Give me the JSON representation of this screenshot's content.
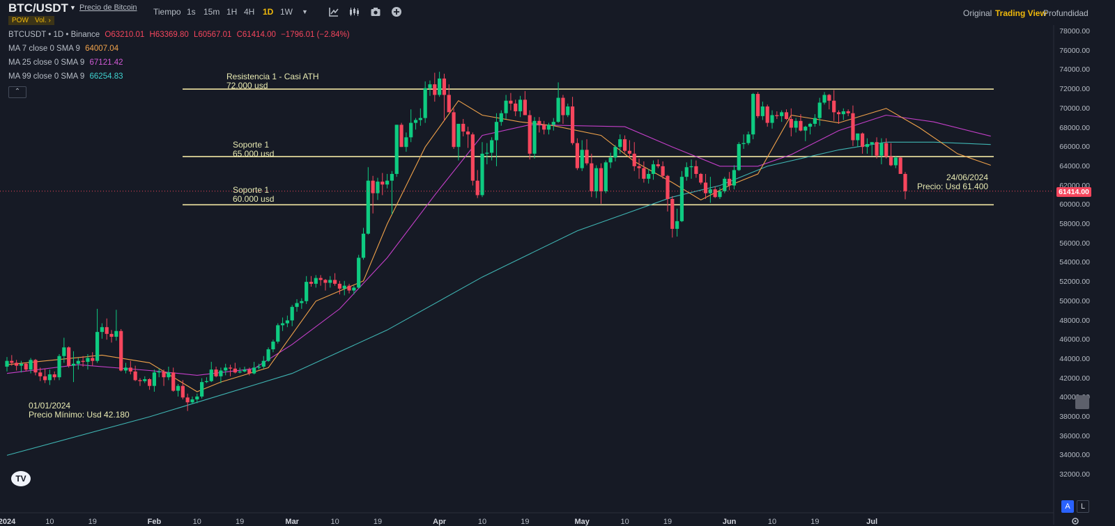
{
  "header": {
    "symbol": "BTC/USDT",
    "price_link": "Precio de Bitcoin",
    "badge_pow": "POW",
    "badge_vol": "Vol. ›",
    "timeframe_label": "Tiempo",
    "timeframes": [
      "1s",
      "15m",
      "1H",
      "4H",
      "1D",
      "1W"
    ],
    "active_timeframe": "1D",
    "views": [
      "Original",
      "Trading View",
      "Profundidad"
    ],
    "active_view": "Trading View"
  },
  "legend": {
    "line1_name": "BTCUSDT • 1D • Binance",
    "open": "O63210.01",
    "high": "H63369.80",
    "low": "L60567.01",
    "close": "C61414.00",
    "change": "−1796.01 (−2.84%)",
    "ma7_label": "MA 7 close 0 SMA 9",
    "ma7_value": "64007.04",
    "ma25_label": "MA 25 close 0 SMA 9",
    "ma25_value": "67121.42",
    "ma99_label": "MA 99 close 0 SMA 9",
    "ma99_value": "66254.83",
    "collapse": "⌃"
  },
  "annotations": {
    "resistance": [
      "Resistencia 1 - Casi ATH",
      "72.000 usd"
    ],
    "support1": [
      "Soporte 1",
      "65.000 usd"
    ],
    "support2": [
      "Soporte 1",
      "60.000 usd"
    ],
    "end_note": [
      "24/06/2024",
      "Precio: Usd 61.400"
    ],
    "start_note": [
      "01/01/2024",
      "Precio Mínimo: Usd 42.180"
    ]
  },
  "price_scale": {
    "labels": [
      "78000.00",
      "76000.00",
      "74000.00",
      "72000.00",
      "70000.00",
      "68000.00",
      "66000.00",
      "64000.00",
      "62000.00",
      "60000.00",
      "58000.00",
      "56000.00",
      "54000.00",
      "52000.00",
      "50000.00",
      "48000.00",
      "46000.00",
      "44000.00",
      "42000.00",
      "40000.00",
      "38000.00",
      "36000.00",
      "34000.00",
      "32000.00"
    ],
    "current_price": "61414.00",
    "auto_btn": "A",
    "log_btn": "L"
  },
  "time_scale": {
    "labels": [
      "2024",
      "10",
      "19",
      "Feb",
      "10",
      "19",
      "Mar",
      "10",
      "19",
      "Apr",
      "10",
      "19",
      "May",
      "10",
      "19",
      "Jun",
      "10",
      "19",
      "Jul"
    ]
  },
  "chart_data": {
    "type": "candlestick",
    "title": "",
    "x_start": "2024-01-01",
    "ylim": [
      31000,
      79000
    ],
    "levels": [
      72000,
      65000,
      60000
    ],
    "colors": {
      "up": "#0ecb81",
      "down": "#f6465d",
      "ma7": "#f0a24a",
      "ma25": "#c43fc9",
      "ma99": "#3fb5b3",
      "level": "#f2e6a3"
    },
    "candles": [
      [
        43200,
        44200,
        42700,
        43800
      ],
      [
        43800,
        44400,
        43300,
        43600
      ],
      [
        43600,
        43900,
        42800,
        43300
      ],
      [
        43300,
        43800,
        42600,
        43500
      ],
      [
        43500,
        43600,
        42700,
        42900
      ],
      [
        42900,
        44100,
        42500,
        43900
      ],
      [
        43900,
        44000,
        42300,
        42600
      ],
      [
        42600,
        43100,
        41700,
        42200
      ],
      [
        42200,
        43000,
        41500,
        41800
      ],
      [
        41800,
        42900,
        41300,
        42400
      ],
      [
        42400,
        42700,
        41800,
        42100
      ],
      [
        42100,
        44500,
        41800,
        44300
      ],
      [
        44300,
        46200,
        43600,
        45200
      ],
      [
        45200,
        45300,
        43100,
        43300
      ],
      [
        43300,
        44800,
        41600,
        43500
      ],
      [
        43500,
        44100,
        42900,
        43800
      ],
      [
        43800,
        44300,
        43200,
        43700
      ],
      [
        43700,
        44500,
        42900,
        44100
      ],
      [
        44100,
        44700,
        43300,
        43800
      ],
      [
        43800,
        49200,
        43600,
        46800
      ],
      [
        46800,
        47700,
        46100,
        47300
      ],
      [
        47300,
        48200,
        46000,
        46600
      ],
      [
        46600,
        47000,
        45700,
        46300
      ],
      [
        46300,
        49100,
        45900,
        46900
      ],
      [
        46900,
        47100,
        42700,
        42800
      ],
      [
        42800,
        43600,
        42500,
        43100
      ],
      [
        43100,
        43800,
        42400,
        42700
      ],
      [
        42700,
        43300,
        41700,
        41800
      ],
      [
        41800,
        42000,
        41200,
        41700
      ],
      [
        41700,
        42200,
        41500,
        41900
      ],
      [
        41900,
        42000,
        40800,
        41200
      ],
      [
        41200,
        42900,
        40600,
        42600
      ],
      [
        42600,
        43000,
        42100,
        42700
      ],
      [
        42700,
        42900,
        41200,
        42100
      ],
      [
        42100,
        43200,
        41800,
        42600
      ],
      [
        42600,
        43100,
        40600,
        40700
      ],
      [
        40700,
        41400,
        40100,
        41200
      ],
      [
        41200,
        41800,
        39800,
        40000
      ],
      [
        40000,
        40400,
        38600,
        39500
      ],
      [
        39500,
        40100,
        39300,
        39800
      ],
      [
        39800,
        40400,
        39400,
        40100
      ],
      [
        40100,
        42000,
        39900,
        41600
      ],
      [
        41600,
        42100,
        41500,
        41700
      ],
      [
        41700,
        43700,
        41600,
        42900
      ],
      [
        42900,
        43200,
        42100,
        42200
      ],
      [
        42200,
        43100,
        41500,
        42800
      ],
      [
        42800,
        43500,
        42300,
        43100
      ],
      [
        43100,
        43400,
        42200,
        43000
      ],
      [
        43000,
        43600,
        42500,
        42600
      ],
      [
        42600,
        43100,
        42500,
        42700
      ],
      [
        42700,
        43200,
        42600,
        42900
      ],
      [
        42900,
        43100,
        42300,
        42500
      ],
      [
        42500,
        43700,
        42400,
        43100
      ],
      [
        43100,
        43500,
        42900,
        43200
      ],
      [
        43200,
        44300,
        43000,
        43800
      ],
      [
        43800,
        45200,
        43700,
        45000
      ],
      [
        45000,
        46000,
        44700,
        45800
      ],
      [
        45800,
        47700,
        45600,
        47500
      ],
      [
        47500,
        48300,
        46900,
        47700
      ],
      [
        47700,
        48500,
        47300,
        48000
      ],
      [
        48000,
        49600,
        47400,
        49400
      ],
      [
        49400,
        50200,
        48900,
        49800
      ],
      [
        49800,
        50300,
        49200,
        50000
      ],
      [
        50000,
        52600,
        49700,
        52000
      ],
      [
        52000,
        52600,
        51500,
        51800
      ],
      [
        51800,
        52700,
        51400,
        52400
      ],
      [
        52400,
        52700,
        51600,
        52200
      ],
      [
        52200,
        52300,
        51100,
        51900
      ],
      [
        51900,
        52600,
        51400,
        52200
      ],
      [
        52200,
        52900,
        51600,
        51800
      ],
      [
        51800,
        52100,
        50700,
        51300
      ],
      [
        51300,
        52100,
        50600,
        51600
      ],
      [
        51600,
        51800,
        50800,
        51100
      ],
      [
        51100,
        51600,
        50700,
        51400
      ],
      [
        51400,
        54800,
        51300,
        54500
      ],
      [
        54500,
        57600,
        54300,
        57000
      ],
      [
        57000,
        63900,
        56900,
        62500
      ],
      [
        62500,
        63000,
        59100,
        61200
      ],
      [
        61200,
        62800,
        60500,
        62400
      ],
      [
        62400,
        63300,
        61000,
        62100
      ],
      [
        62100,
        63200,
        61700,
        62500
      ],
      [
        62500,
        63500,
        59000,
        63200
      ],
      [
        63200,
        68300,
        62900,
        68300
      ],
      [
        68300,
        68500,
        66000,
        66000
      ],
      [
        66000,
        67500,
        65500,
        67000
      ],
      [
        67000,
        69900,
        66500,
        68500
      ],
      [
        68500,
        69000,
        67800,
        68800
      ],
      [
        68800,
        70000,
        68200,
        69000
      ],
      [
        69000,
        72800,
        68500,
        72100
      ],
      [
        72100,
        72900,
        71300,
        72500
      ],
      [
        72500,
        73700,
        70700,
        71400
      ],
      [
        71400,
        73800,
        71200,
        73100
      ],
      [
        73100,
        73600,
        68700,
        71400
      ],
      [
        71400,
        72500,
        70000,
        69600
      ],
      [
        69600,
        70000,
        65800,
        66000
      ],
      [
        66000,
        68400,
        64600,
        68400
      ],
      [
        68400,
        68900,
        67100,
        67600
      ],
      [
        67600,
        68100,
        65900,
        67300
      ],
      [
        67300,
        67500,
        62000,
        62500
      ],
      [
        62500,
        63600,
        60700,
        61000
      ],
      [
        61000,
        66500,
        60800,
        65300
      ],
      [
        65300,
        66400,
        64200,
        65400
      ],
      [
        65400,
        67000,
        64600,
        66700
      ],
      [
        66700,
        69500,
        64000,
        68600
      ],
      [
        68600,
        69800,
        68200,
        69500
      ],
      [
        69500,
        71400,
        68900,
        70800
      ],
      [
        70800,
        71600,
        69800,
        70500
      ],
      [
        70500,
        70900,
        69200,
        69700
      ],
      [
        69700,
        71300,
        69100,
        70900
      ],
      [
        70900,
        71800,
        69600,
        69300
      ],
      [
        69300,
        69800,
        64700,
        65300
      ],
      [
        65300,
        69100,
        64800,
        68700
      ],
      [
        68700,
        69100,
        67500,
        68300
      ],
      [
        68300,
        68700,
        67300,
        67800
      ],
      [
        67800,
        68500,
        67300,
        68300
      ],
      [
        68300,
        69000,
        67700,
        68600
      ],
      [
        68600,
        72700,
        68500,
        71100
      ],
      [
        71100,
        71400,
        68400,
        69300
      ],
      [
        69300,
        70500,
        69100,
        70200
      ],
      [
        70200,
        71200,
        66200,
        66400
      ],
      [
        66400,
        66900,
        63600,
        63800
      ],
      [
        63800,
        66700,
        63500,
        65700
      ],
      [
        65700,
        66800,
        64100,
        64300
      ],
      [
        64300,
        65300,
        60800,
        61400
      ],
      [
        61400,
        64100,
        60700,
        63800
      ],
      [
        63800,
        64300,
        60100,
        61400
      ],
      [
        61400,
        64600,
        61200,
        64400
      ],
      [
        64400,
        65400,
        63800,
        64900
      ],
      [
        64900,
        66200,
        64500,
        66000
      ],
      [
        66000,
        67300,
        65300,
        66800
      ],
      [
        66800,
        67200,
        65400,
        65600
      ],
      [
        65600,
        66700,
        64900,
        65300
      ],
      [
        65300,
        66500,
        63500,
        64000
      ],
      [
        64000,
        64800,
        62700,
        63800
      ],
      [
        63800,
        64500,
        62300,
        62700
      ],
      [
        62700,
        63700,
        62200,
        63200
      ],
      [
        63200,
        64600,
        62600,
        64200
      ],
      [
        64200,
        64700,
        63800,
        64000
      ],
      [
        64000,
        64500,
        62700,
        63000
      ],
      [
        63000,
        63100,
        59300,
        60600
      ],
      [
        60600,
        60900,
        56600,
        57500
      ],
      [
        57500,
        59600,
        56700,
        58300
      ],
      [
        58300,
        63500,
        58200,
        62900
      ],
      [
        62900,
        64400,
        62500,
        63900
      ],
      [
        63900,
        64700,
        62700,
        64000
      ],
      [
        64000,
        64600,
        62800,
        63200
      ],
      [
        63200,
        63300,
        62100,
        62300
      ],
      [
        62300,
        63200,
        60600,
        61200
      ],
      [
        61200,
        62900,
        60200,
        61600
      ],
      [
        61600,
        61900,
        60700,
        60800
      ],
      [
        60800,
        61800,
        60600,
        61400
      ],
      [
        61400,
        62900,
        61200,
        62700
      ],
      [
        62700,
        63400,
        61500,
        62000
      ],
      [
        62000,
        64100,
        61600,
        63600
      ],
      [
        63600,
        66500,
        63500,
        66300
      ],
      [
        66300,
        67300,
        65800,
        66400
      ],
      [
        66400,
        67600,
        66200,
        67300
      ],
      [
        67300,
        71600,
        66800,
        71500
      ],
      [
        71500,
        71700,
        69000,
        69200
      ],
      [
        69200,
        70700,
        68800,
        70200
      ],
      [
        70200,
        70400,
        68100,
        68500
      ],
      [
        68500,
        69800,
        67900,
        69300
      ],
      [
        69300,
        69700,
        68900,
        69200
      ],
      [
        69200,
        69800,
        68600,
        69600
      ],
      [
        69600,
        69900,
        68800,
        68900
      ],
      [
        68900,
        70000,
        67100,
        68000
      ],
      [
        68000,
        69000,
        67500,
        68700
      ],
      [
        68700,
        69400,
        67600,
        67700
      ],
      [
        67700,
        68200,
        66600,
        68100
      ],
      [
        68100,
        68500,
        67300,
        68400
      ],
      [
        68400,
        69400,
        68100,
        69000
      ],
      [
        69000,
        71100,
        68200,
        70600
      ],
      [
        70600,
        71700,
        70400,
        71400
      ],
      [
        71400,
        71500,
        69900,
        70800
      ],
      [
        70800,
        71900,
        68700,
        69600
      ],
      [
        69600,
        69800,
        68400,
        69400
      ],
      [
        69400,
        70000,
        68800,
        69700
      ],
      [
        69700,
        69900,
        69200,
        69500
      ],
      [
        69500,
        70300,
        66100,
        66700
      ],
      [
        66700,
        67200,
        66000,
        67400
      ],
      [
        67400,
        67500,
        65300,
        66000
      ],
      [
        66000,
        66900,
        65300,
        66300
      ],
      [
        66300,
        66400,
        65100,
        66500
      ],
      [
        66500,
        67000,
        64800,
        65100
      ],
      [
        65100,
        66900,
        64200,
        66400
      ],
      [
        66400,
        66900,
        64800,
        65000
      ],
      [
        65000,
        66400,
        64000,
        64100
      ],
      [
        64100,
        65000,
        63800,
        64900
      ],
      [
        64900,
        64950,
        63200,
        63200
      ],
      [
        63200,
        63400,
        60567,
        61414
      ]
    ],
    "ma7_approx": [
      [
        0,
        43400
      ],
      [
        20,
        44400
      ],
      [
        30,
        43600
      ],
      [
        40,
        40600
      ],
      [
        45,
        41600
      ],
      [
        55,
        43100
      ],
      [
        65,
        50000
      ],
      [
        75,
        52100
      ],
      [
        80,
        58000
      ],
      [
        88,
        66000
      ],
      [
        95,
        70800
      ],
      [
        100,
        69300
      ],
      [
        108,
        68600
      ],
      [
        115,
        68200
      ],
      [
        125,
        67200
      ],
      [
        132,
        64500
      ],
      [
        140,
        62300
      ],
      [
        146,
        60500
      ],
      [
        152,
        62000
      ],
      [
        158,
        63200
      ],
      [
        165,
        69300
      ],
      [
        175,
        68500
      ],
      [
        185,
        70000
      ],
      [
        192,
        68000
      ],
      [
        200,
        65300
      ],
      [
        207,
        64100
      ]
    ],
    "ma25_approx": [
      [
        0,
        42500
      ],
      [
        15,
        43400
      ],
      [
        30,
        42800
      ],
      [
        40,
        42300
      ],
      [
        52,
        43000
      ],
      [
        60,
        45500
      ],
      [
        70,
        49200
      ],
      [
        80,
        54500
      ],
      [
        90,
        61000
      ],
      [
        100,
        67200
      ],
      [
        110,
        68300
      ],
      [
        120,
        68200
      ],
      [
        130,
        68100
      ],
      [
        140,
        66000
      ],
      [
        150,
        64000
      ],
      [
        158,
        64000
      ],
      [
        165,
        65200
      ],
      [
        175,
        67700
      ],
      [
        185,
        69300
      ],
      [
        195,
        68600
      ],
      [
        207,
        67121
      ]
    ],
    "ma99_approx": [
      [
        0,
        34000
      ],
      [
        30,
        38000
      ],
      [
        60,
        42500
      ],
      [
        80,
        47000
      ],
      [
        100,
        52500
      ],
      [
        120,
        57300
      ],
      [
        140,
        60800
      ],
      [
        150,
        62000
      ],
      [
        160,
        64000
      ],
      [
        175,
        65700
      ],
      [
        185,
        66500
      ],
      [
        195,
        66500
      ],
      [
        207,
        66255
      ]
    ]
  }
}
